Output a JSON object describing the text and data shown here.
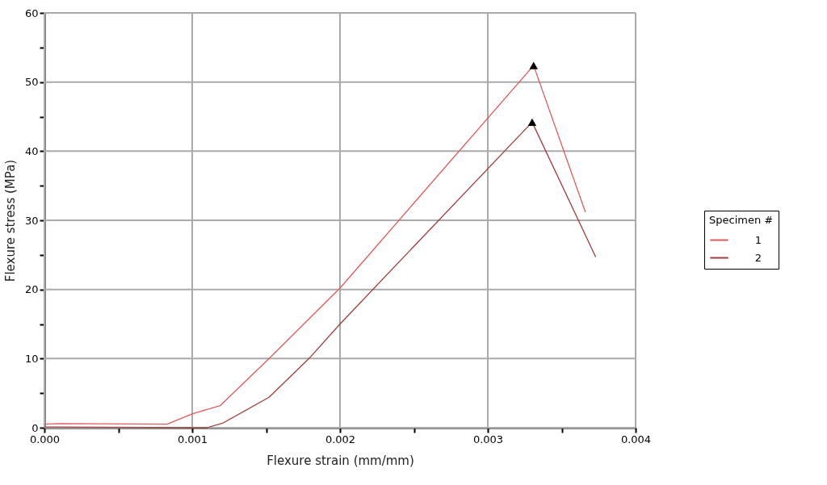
{
  "chart_data": {
    "type": "line",
    "xlabel": "Flexure strain (mm/mm)",
    "ylabel": "Flexure stress (MPa)",
    "legend_title": "Specimen #",
    "legend": "right",
    "grid": true,
    "line_style": "solid",
    "marker": "none",
    "xlim": [
      0,
      0.004
    ],
    "ylim": [
      0,
      60
    ],
    "xticks": [
      {
        "value": 0,
        "label": "0.000"
      },
      {
        "value": 0.0005,
        "label": null
      },
      {
        "value": 0.001,
        "label": "0.001"
      },
      {
        "value": 0.0015,
        "label": null
      },
      {
        "value": 0.002,
        "label": "0.002"
      },
      {
        "value": 0.0025,
        "label": null
      },
      {
        "value": 0.003,
        "label": "0.003"
      },
      {
        "value": 0.0035,
        "label": null
      },
      {
        "value": 0.004,
        "label": "0.004"
      }
    ],
    "yticks": [
      0,
      {
        "value": 5,
        "label": null
      },
      10,
      {
        "value": 15,
        "label": null
      },
      20,
      {
        "value": 25,
        "label": null
      },
      30,
      {
        "value": 35,
        "label": null
      },
      40,
      {
        "value": 45,
        "label": null
      },
      50,
      {
        "value": 55,
        "label": null
      },
      60
    ],
    "series": [
      {
        "name": "1",
        "color": "#e05a5a",
        "x": [
          0,
          0.0001,
          0.00083,
          0.001,
          0.00119,
          0.00152,
          0.002,
          0.00331,
          0.00366
        ],
        "values": [
          0.5,
          0.6,
          0.5,
          2.0,
          3.2,
          10,
          20.2,
          52.4,
          31.2
        ]
      },
      {
        "name": "2",
        "color": "#a03c3c",
        "x": [
          0,
          0.0011,
          0.00121,
          0.00152,
          0.00179,
          0.002,
          0.0033,
          0.00373
        ],
        "values": [
          0.1,
          0,
          0.7,
          4.4,
          10,
          15,
          44.2,
          24.7
        ]
      },
      {
        "type": "scatter",
        "marker": "triangle",
        "color": "#000000",
        "x": [
          0.00331,
          0.0033
        ],
        "values": [
          52.4,
          44.2
        ]
      }
    ]
  }
}
